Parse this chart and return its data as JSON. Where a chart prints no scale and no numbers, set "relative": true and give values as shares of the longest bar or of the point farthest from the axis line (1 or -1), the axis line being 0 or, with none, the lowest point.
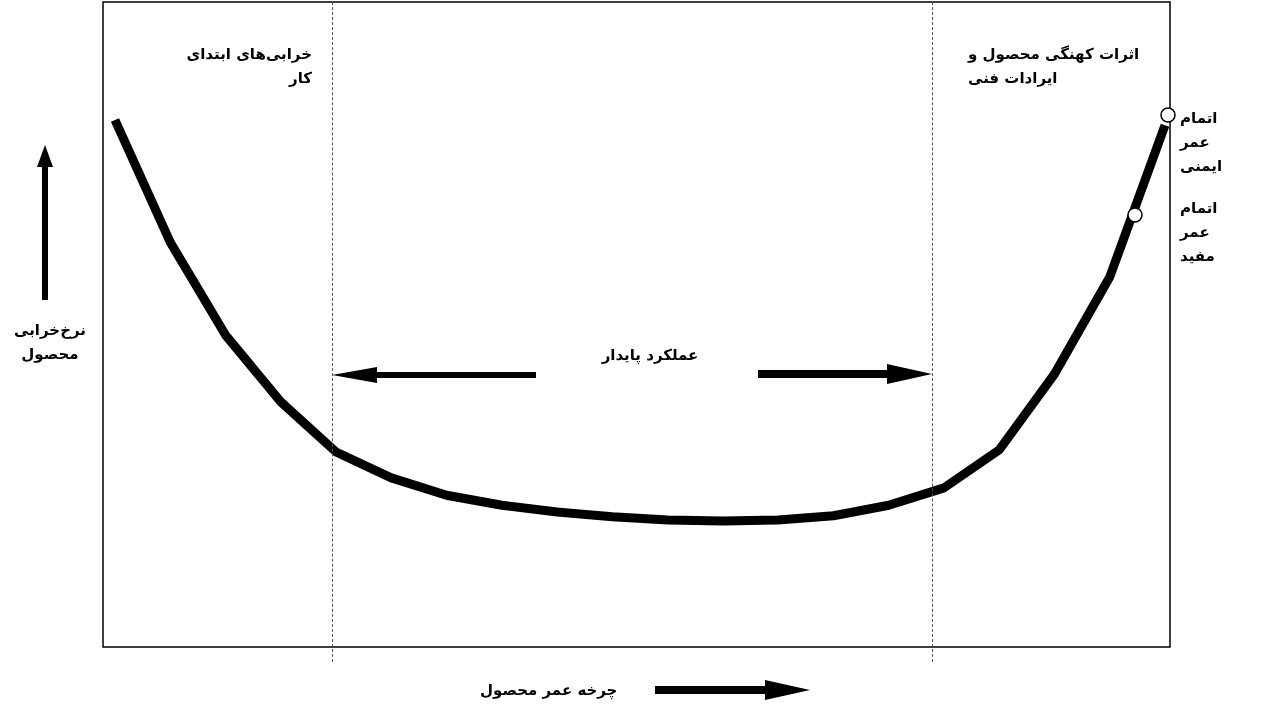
{
  "chart_data": {
    "type": "line",
    "relative": true,
    "categories": [
      null,
      null,
      null,
      null,
      null,
      null,
      null,
      null,
      null,
      null,
      null,
      null,
      null,
      null,
      null,
      null,
      null,
      null,
      null,
      null
    ],
    "series": [
      {
        "color": "#000000",
        "values": [
          1.0,
          0.768,
          0.592,
          0.465,
          0.37,
          0.321,
          0.288,
          0.269,
          0.256,
          0.247,
          0.241,
          0.239,
          0.241,
          0.249,
          0.269,
          0.302,
          0.374,
          0.518,
          0.702,
          0.99
        ]
      }
    ],
    "xlabel": "چرخه عمر محصول",
    "ylabel": "نرخ‌خرابی محصول",
    "annotations": [
      "خرابی‌های ابتدای کار",
      "اثرات کهنگی محصول و ایرادات فنی",
      "عملکرد پایدار",
      "اتمام عمر ایمنی",
      "اتمام عمر مفید"
    ]
  }
}
